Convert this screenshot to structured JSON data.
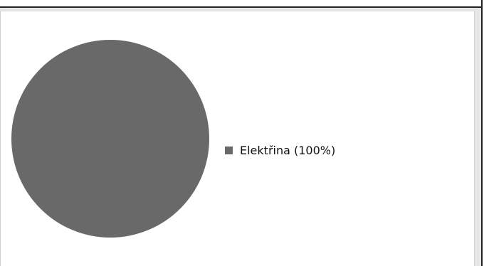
{
  "chart_data": {
    "type": "pie",
    "title": "",
    "slices": [
      {
        "label": "Elektřina",
        "value": 100,
        "color": "#696969"
      }
    ],
    "legend": {
      "placement": "right",
      "entries": [
        "Elektřina (100%)"
      ]
    }
  }
}
